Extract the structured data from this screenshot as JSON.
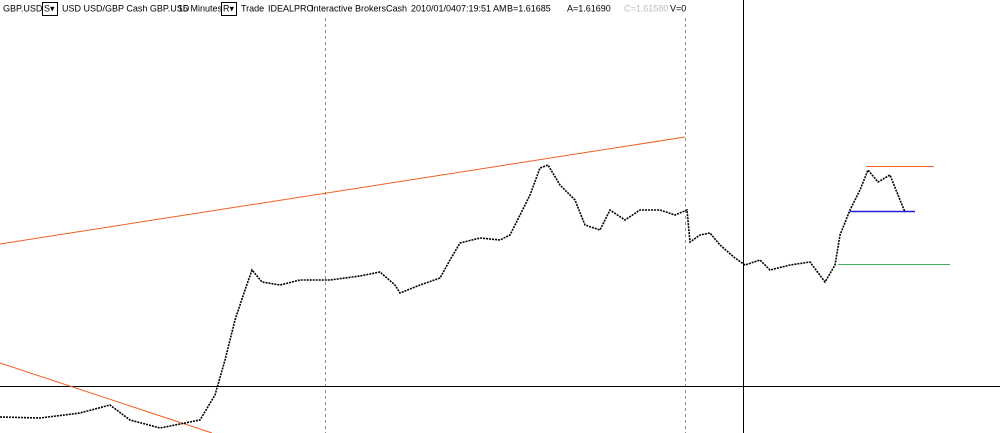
{
  "toolbar": {
    "symbol": "GBP.USD",
    "s_button": "S▾",
    "description": "USD USD/GBP Cash GBP.USD",
    "interval": "15 Minutes",
    "r_button": "R▾",
    "mode": "Trade",
    "exchange": "IDEALPRO",
    "broker": "Interactive Brokers",
    "sec_type": "Cash",
    "date": "2010/01/04",
    "time": "07:19:51 AM",
    "bid": "B=1.61685",
    "ask": "A=1.61690",
    "close": "C=1.61580",
    "volume": "V=0"
  }
}
